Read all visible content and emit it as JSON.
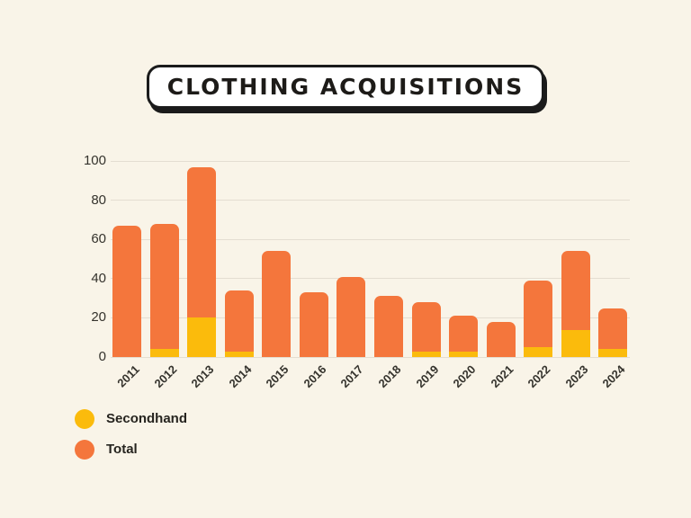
{
  "title": {
    "text": "CLOTHING ACQUISITIONS"
  },
  "legend": {
    "items": [
      {
        "label": "Secondhand",
        "color": "#FBBB0C"
      },
      {
        "label": "Total",
        "color": "#F4763C"
      }
    ]
  },
  "chart_data": {
    "type": "bar",
    "title": "CLOTHING ACQUISITIONS",
    "categories": [
      "2011",
      "2012",
      "2013",
      "2014",
      "2015",
      "2016",
      "2017",
      "2018",
      "2019",
      "2020",
      "2021",
      "2022",
      "2023",
      "2024"
    ],
    "series": [
      {
        "name": "Secondhand",
        "color": "#FBBB0C",
        "values": [
          0,
          4,
          20,
          3,
          0,
          0,
          0,
          0,
          3,
          3,
          0,
          5,
          14,
          4
        ]
      },
      {
        "name": "Total",
        "color": "#F4763C",
        "values": [
          67,
          68,
          97,
          34,
          54,
          33,
          41,
          31,
          28,
          21,
          18,
          39,
          54,
          25
        ]
      }
    ],
    "xlabel": "",
    "ylabel": "",
    "ylim": [
      0,
      100
    ],
    "yticks": [
      0,
      20,
      40,
      60,
      80,
      100
    ],
    "grid": true,
    "bar_style": "rounded-top stacked: Secondhand segment drawn at base of Total bar",
    "legend_position": "bottom-left",
    "x_tick_rotation_deg": -45
  },
  "colors": {
    "background": "#F9F4E8",
    "gridline": "#E4DED1",
    "axis_text": "#35332D",
    "legend_text": "#26241F",
    "title_text": "#1D1B18"
  }
}
